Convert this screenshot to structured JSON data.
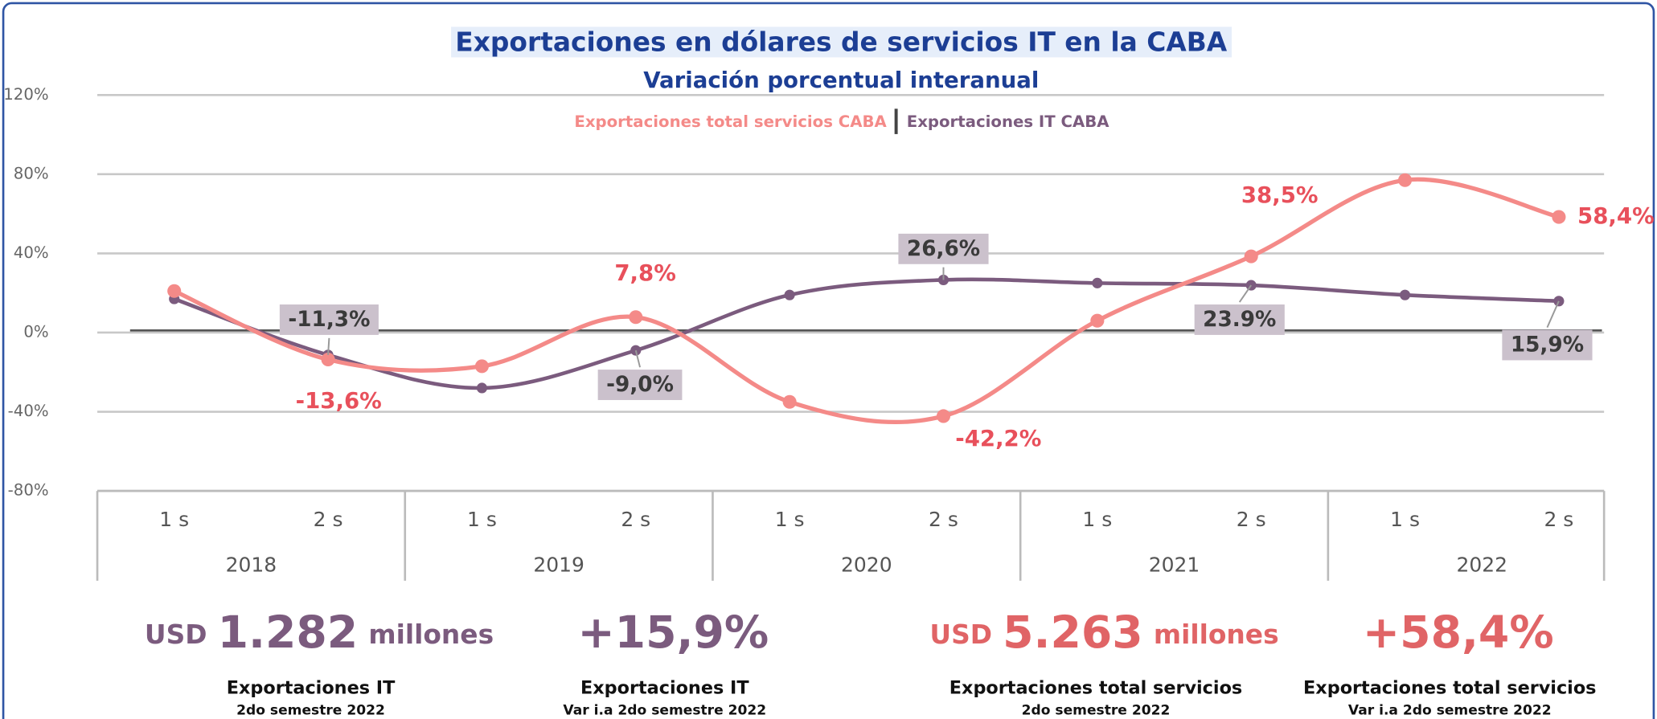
{
  "chart_data": {
    "type": "line",
    "title": "Exportaciones en dólares de servicios IT en la CABA",
    "subtitle": "Variación porcentual interanual",
    "categories": [
      "1 s",
      "2 s",
      "1 s",
      "2 s",
      "1 s",
      "2 s",
      "1 s",
      "2 s",
      "1 s",
      "2 s"
    ],
    "groups": [
      "2018",
      "2019",
      "2020",
      "2021",
      "2022"
    ],
    "series": [
      {
        "name": "Exportaciones total servicios CABA",
        "color": "#f48a88",
        "values": [
          21,
          -13.6,
          -17,
          7.8,
          -35,
          -42.2,
          6,
          38.5,
          77,
          58.4
        ],
        "value_labels": [
          null,
          "-13,6%",
          null,
          "7,8%",
          null,
          "-42,2%",
          null,
          "38,5%",
          null,
          "58,4%"
        ]
      },
      {
        "name": "Exportaciones IT CABA",
        "color": "#7b5b7e",
        "values": [
          17,
          -11.3,
          -28,
          -9.0,
          19,
          26.6,
          25,
          23.9,
          19,
          15.9
        ],
        "value_labels": [
          null,
          "-11,3%",
          null,
          "-9,0%",
          null,
          "26,6%",
          null,
          "23.9%",
          null,
          "15,9%"
        ]
      }
    ],
    "ylim": [
      -80,
      120
    ],
    "yticks": [
      {
        "value": -80,
        "label": "-80%"
      },
      {
        "value": -40,
        "label": "-40%"
      },
      {
        "value": 0,
        "label": "0%"
      },
      {
        "value": 40,
        "label": "40%"
      },
      {
        "value": 80,
        "label": "80%"
      },
      {
        "value": 120,
        "label": "120%"
      }
    ],
    "grid": true,
    "kpis": [
      {
        "prefix": "USD",
        "figure": "1.282",
        "suffix": "millones",
        "label": "Exportaciones  IT",
        "sub": "2do  semestre 2022"
      },
      {
        "figure": "+15,9%",
        "label": "Exportaciones  IT",
        "sub": "Var i.a 2do semestre 2022"
      },
      {
        "prefix": "USD",
        "figure": "5.263",
        "suffix": "millones",
        "label": "Exportaciones total servicios",
        "sub": "2do semestre 2022"
      },
      {
        "figure": "+58,4%",
        "label": "Exportaciones total servicios",
        "sub": "Var i.a 2do semestre 2022"
      }
    ]
  }
}
